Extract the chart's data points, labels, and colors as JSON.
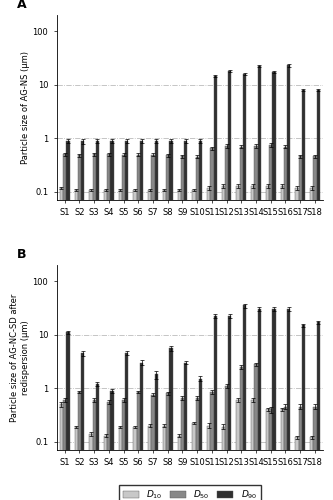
{
  "categories": [
    "S1",
    "S2",
    "S3",
    "S4",
    "S5",
    "S6",
    "S7",
    "S8",
    "S9",
    "S10",
    "S11",
    "S12",
    "S13",
    "S14",
    "S15",
    "S16",
    "S17",
    "S18"
  ],
  "panel_A": {
    "D10": [
      0.12,
      0.11,
      0.11,
      0.11,
      0.11,
      0.11,
      0.11,
      0.11,
      0.11,
      0.11,
      0.12,
      0.13,
      0.13,
      0.13,
      0.13,
      0.13,
      0.12,
      0.12
    ],
    "D50": [
      0.5,
      0.48,
      0.5,
      0.5,
      0.49,
      0.49,
      0.49,
      0.48,
      0.46,
      0.45,
      0.65,
      0.72,
      0.7,
      0.72,
      0.75,
      0.7,
      0.46,
      0.46
    ],
    "D90": [
      0.9,
      0.87,
      0.88,
      0.88,
      0.9,
      0.88,
      0.88,
      0.88,
      0.88,
      0.88,
      14.5,
      18.0,
      16.0,
      22.0,
      17.5,
      23.0,
      8.0,
      8.0
    ],
    "D10_err": [
      0.005,
      0.005,
      0.005,
      0.005,
      0.005,
      0.005,
      0.005,
      0.005,
      0.005,
      0.005,
      0.01,
      0.01,
      0.01,
      0.01,
      0.01,
      0.01,
      0.01,
      0.01
    ],
    "D50_err": [
      0.03,
      0.03,
      0.03,
      0.03,
      0.03,
      0.03,
      0.03,
      0.03,
      0.03,
      0.03,
      0.05,
      0.05,
      0.05,
      0.05,
      0.05,
      0.05,
      0.03,
      0.03
    ],
    "D90_err": [
      0.08,
      0.08,
      0.08,
      0.08,
      0.08,
      0.08,
      0.08,
      0.08,
      0.08,
      0.08,
      0.8,
      1.0,
      0.8,
      1.0,
      0.8,
      1.2,
      0.4,
      0.4
    ],
    "ylabel": "Particle size of AG-NS (μm)"
  },
  "panel_B": {
    "D10": [
      0.5,
      0.19,
      0.14,
      0.13,
      0.19,
      0.19,
      0.2,
      0.2,
      0.13,
      0.22,
      0.2,
      0.19,
      0.6,
      0.6,
      0.4,
      0.4,
      0.12,
      0.12
    ],
    "D50": [
      0.6,
      0.85,
      0.6,
      0.55,
      0.6,
      0.85,
      0.75,
      0.8,
      0.65,
      0.65,
      0.85,
      1.1,
      2.5,
      2.8,
      0.4,
      0.45,
      0.45,
      0.45
    ],
    "D90": [
      11.0,
      4.5,
      1.2,
      0.9,
      4.5,
      3.0,
      1.8,
      5.5,
      3.0,
      1.5,
      22.0,
      22.0,
      35.0,
      30.0,
      30.0,
      30.0,
      15.0,
      17.0
    ],
    "D10_err": [
      0.05,
      0.01,
      0.01,
      0.01,
      0.01,
      0.01,
      0.01,
      0.01,
      0.01,
      0.01,
      0.02,
      0.02,
      0.05,
      0.05,
      0.03,
      0.03,
      0.01,
      0.01
    ],
    "D50_err": [
      0.05,
      0.05,
      0.05,
      0.05,
      0.05,
      0.05,
      0.05,
      0.05,
      0.05,
      0.05,
      0.08,
      0.08,
      0.2,
      0.2,
      0.05,
      0.05,
      0.05,
      0.05
    ],
    "D90_err": [
      0.8,
      0.5,
      0.1,
      0.08,
      0.4,
      0.3,
      0.3,
      0.5,
      0.2,
      0.15,
      2.0,
      2.0,
      3.0,
      2.5,
      2.5,
      2.5,
      1.0,
      1.0
    ],
    "ylabel": "Particle size of AG-NC-SD after\nredispersion (μm)"
  },
  "color_D10": "#c8c8c8",
  "color_D50": "#888888",
  "color_D90": "#303030",
  "bar_width": 0.22,
  "ylim": [
    0.07,
    200
  ],
  "grid_color": "#aaaaaa",
  "font_size": 6.5,
  "tick_labelsize": 6,
  "legend_labels": [
    "D10",
    "D50",
    "D90"
  ],
  "legend_subscripts": [
    "10",
    "50",
    "90"
  ]
}
